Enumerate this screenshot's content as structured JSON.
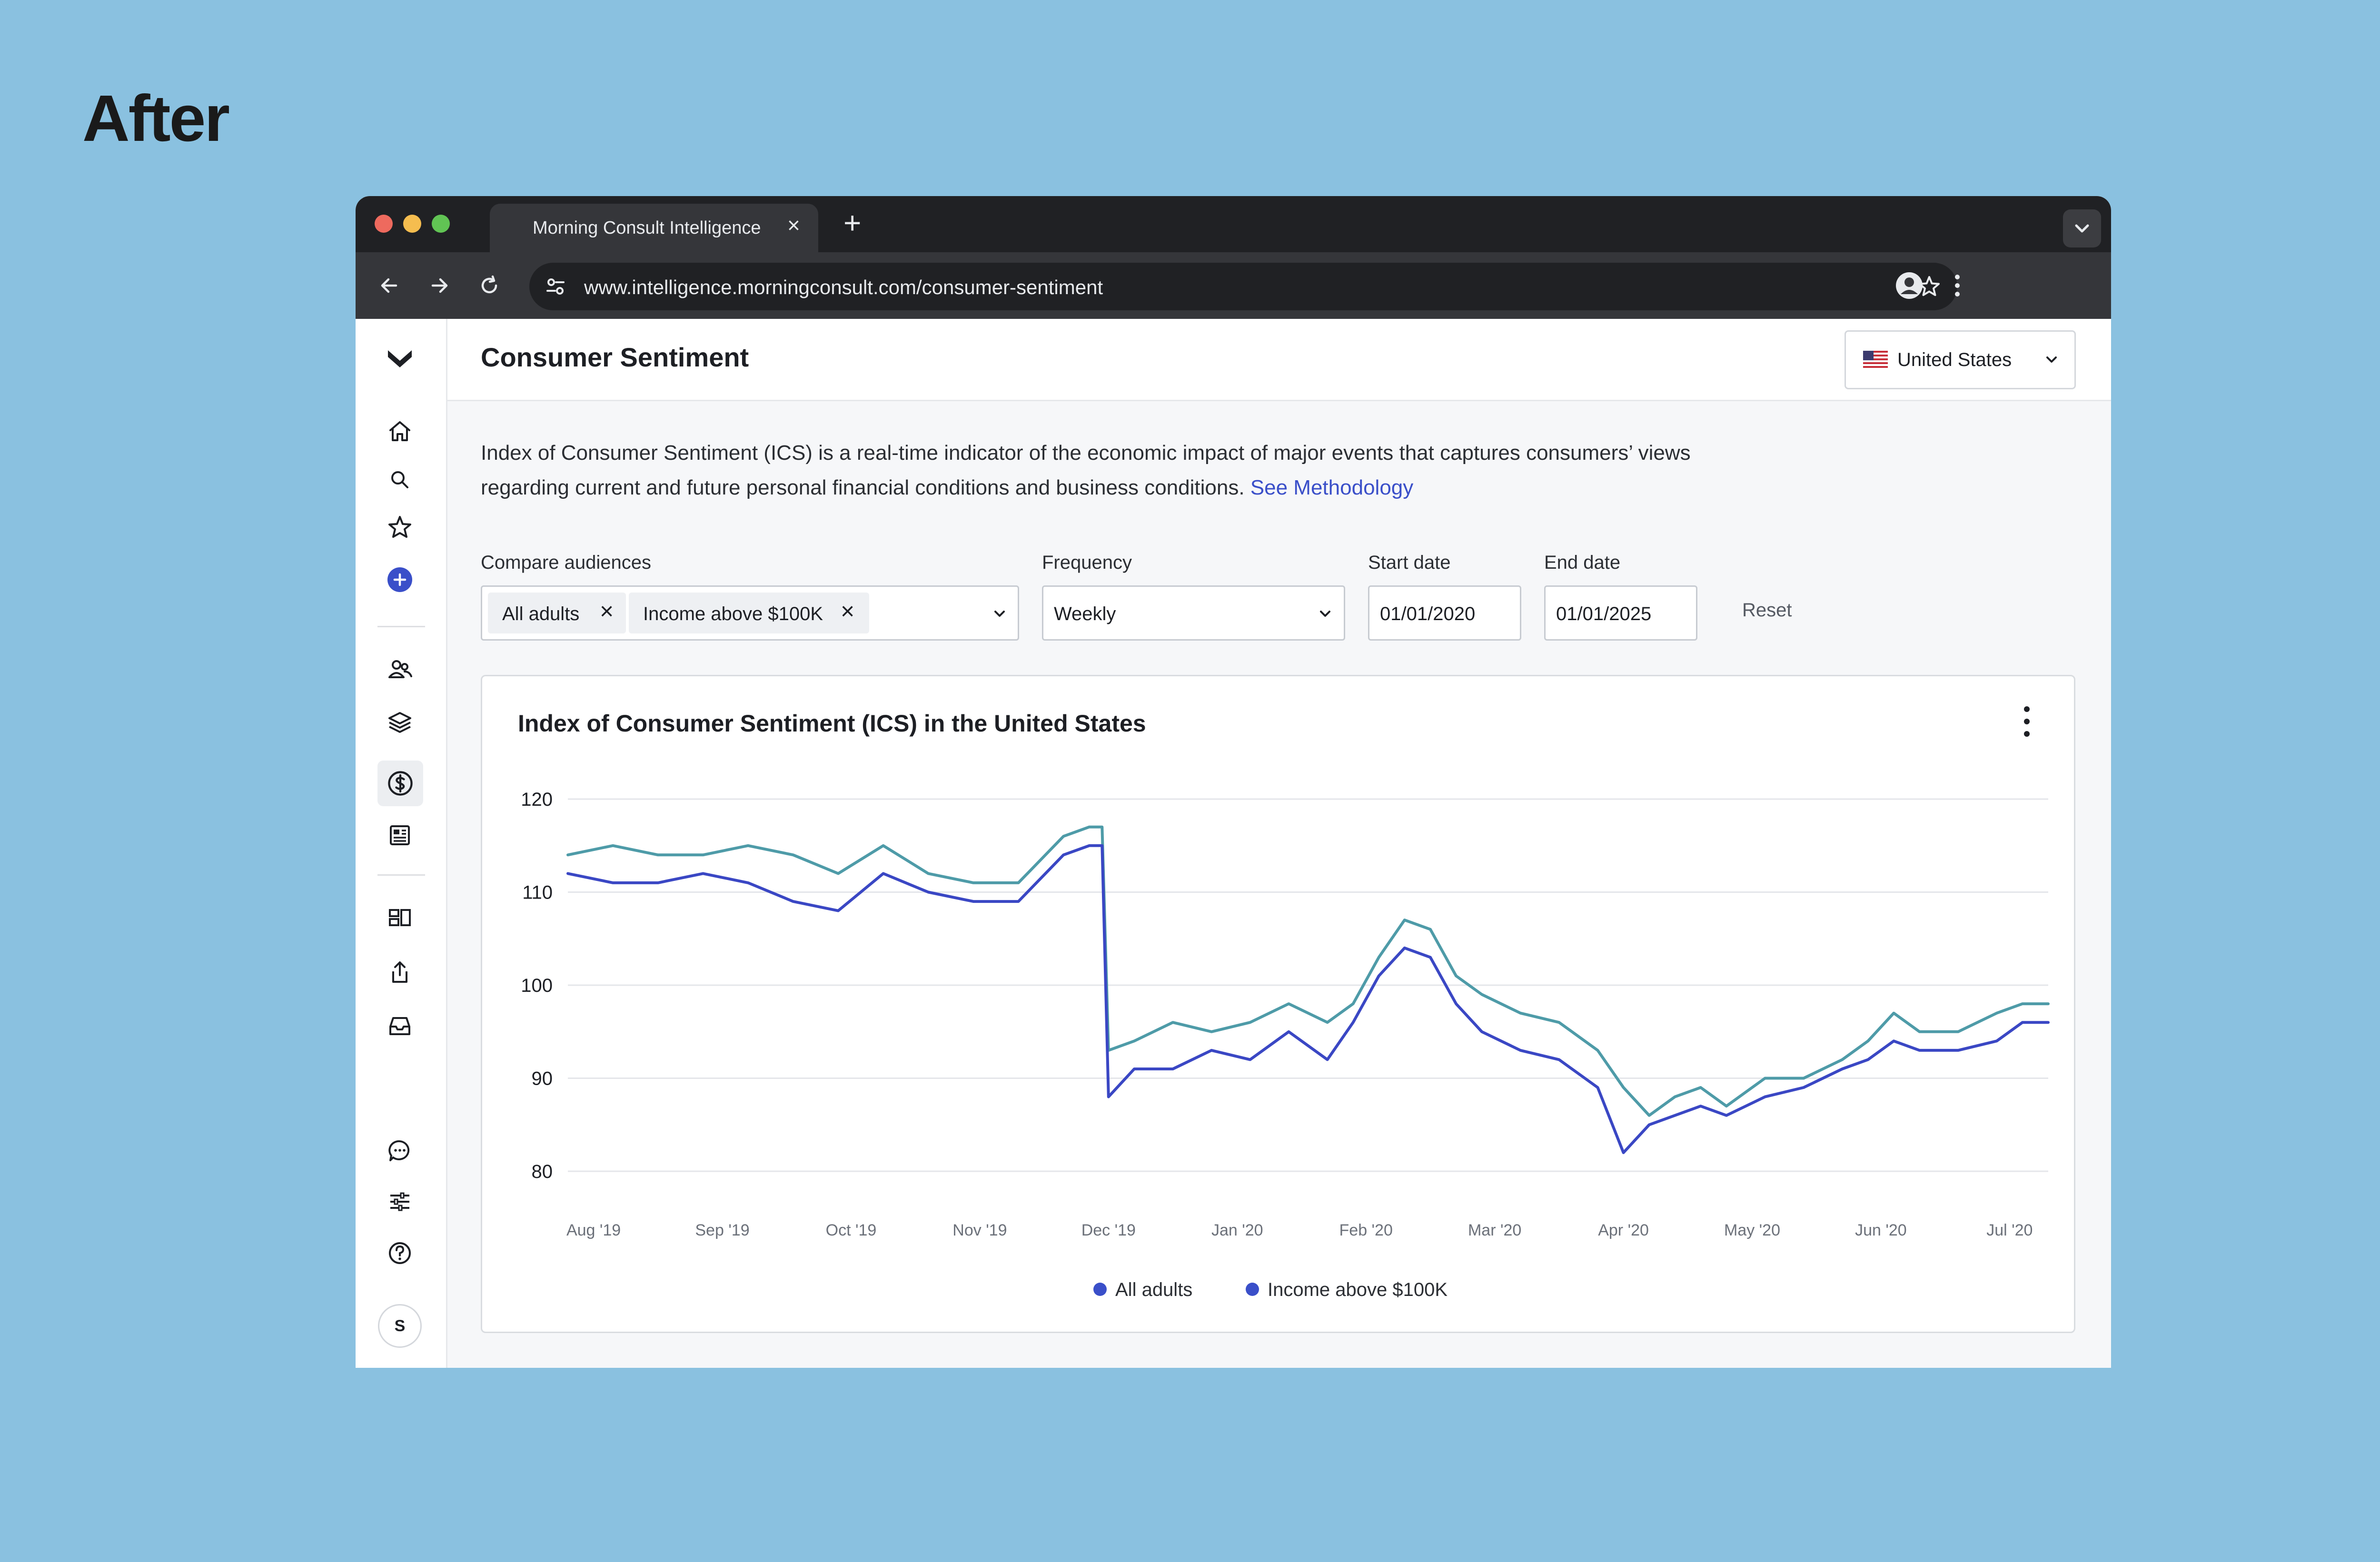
{
  "page_heading": "After",
  "browser": {
    "tab_title": "Morning Consult Intelligence",
    "url": "www.intelligence.morningconsult.com/consumer-sentiment"
  },
  "header": {
    "title": "Consumer Sentiment",
    "country": "United States"
  },
  "description": {
    "text": "Index of Consumer Sentiment (ICS) is a real-time indicator of the economic impact of major events that captures consumers’ views regarding current and future personal financial conditions and business conditions.",
    "link": "See Methodology"
  },
  "filters": {
    "compare_label": "Compare audiences",
    "audiences": [
      "All adults",
      "Income above $100K"
    ],
    "frequency_label": "Frequency",
    "frequency_value": "Weekly",
    "start_label": "Start date",
    "start_value": "01/01/2020",
    "end_label": "End date",
    "end_value": "01/01/2025",
    "reset_label": "Reset"
  },
  "sidebar": {
    "avatar_initial": "S"
  },
  "colors": {
    "series_teal": "#4E9BA8",
    "series_blue": "#3A47C4",
    "legend_dot": "#3A4FC9",
    "link": "#3A4FC9"
  },
  "chart_data": {
    "type": "line",
    "title": "Index of Consumer Sentiment (ICS) in the United States",
    "xlabel": "",
    "ylabel": "",
    "ylim": [
      80,
      120
    ],
    "yticks": [
      120,
      110,
      100,
      90,
      80
    ],
    "x_tick_labels": [
      "Aug '19",
      "Sep '19",
      "Oct '19",
      "Nov '19",
      "Dec '19",
      "Jan '20",
      "Feb '20",
      "Mar '20",
      "Apr '20",
      "May '20",
      "Jun '20",
      "Jul '20"
    ],
    "x_tick_positions": [
      0.2,
      1.2,
      2.2,
      3.2,
      4.2,
      5.2,
      6.2,
      7.2,
      8.2,
      9.2,
      10.2,
      11.2
    ],
    "xlim": [
      0,
      11.5
    ],
    "grid": "horizontal",
    "legend_position": "bottom-center",
    "series": [
      {
        "name": "All adults",
        "color": "#4E9BA8",
        "x": [
          0,
          0.35,
          0.7,
          1.05,
          1.4,
          1.75,
          2.1,
          2.45,
          2.8,
          3.15,
          3.5,
          3.85,
          4.05,
          4.15,
          4.2,
          4.4,
          4.7,
          5.0,
          5.3,
          5.6,
          5.9,
          6.1,
          6.3,
          6.5,
          6.7,
          6.9,
          7.1,
          7.4,
          7.7,
          8.0,
          8.2,
          8.4,
          8.6,
          8.8,
          9.0,
          9.3,
          9.6,
          9.9,
          10.1,
          10.3,
          10.5,
          10.8,
          11.1,
          11.3,
          11.5
        ],
        "y": [
          114,
          115,
          114,
          114,
          115,
          114,
          112,
          115,
          112,
          111,
          111,
          116,
          117,
          117,
          93,
          94,
          96,
          95,
          96,
          98,
          96,
          98,
          103,
          107,
          106,
          101,
          99,
          97,
          96,
          93,
          89,
          86,
          88,
          89,
          87,
          90,
          90,
          92,
          94,
          97,
          95,
          95,
          97,
          98,
          98
        ]
      },
      {
        "name": "Income above $100K",
        "color": "#3A47C4",
        "x": [
          0,
          0.35,
          0.7,
          1.05,
          1.4,
          1.75,
          2.1,
          2.45,
          2.8,
          3.15,
          3.5,
          3.85,
          4.05,
          4.15,
          4.2,
          4.4,
          4.7,
          5.0,
          5.3,
          5.6,
          5.9,
          6.1,
          6.3,
          6.5,
          6.7,
          6.9,
          7.1,
          7.4,
          7.7,
          8.0,
          8.2,
          8.4,
          8.6,
          8.8,
          9.0,
          9.3,
          9.6,
          9.9,
          10.1,
          10.3,
          10.5,
          10.8,
          11.1,
          11.3,
          11.5
        ],
        "y": [
          112,
          111,
          111,
          112,
          111,
          109,
          108,
          112,
          110,
          109,
          109,
          114,
          115,
          115,
          88,
          91,
          91,
          93,
          92,
          95,
          92,
          96,
          101,
          104,
          103,
          98,
          95,
          93,
          92,
          89,
          82,
          85,
          86,
          87,
          86,
          88,
          89,
          91,
          92,
          94,
          93,
          93,
          94,
          96,
          96
        ]
      }
    ]
  }
}
